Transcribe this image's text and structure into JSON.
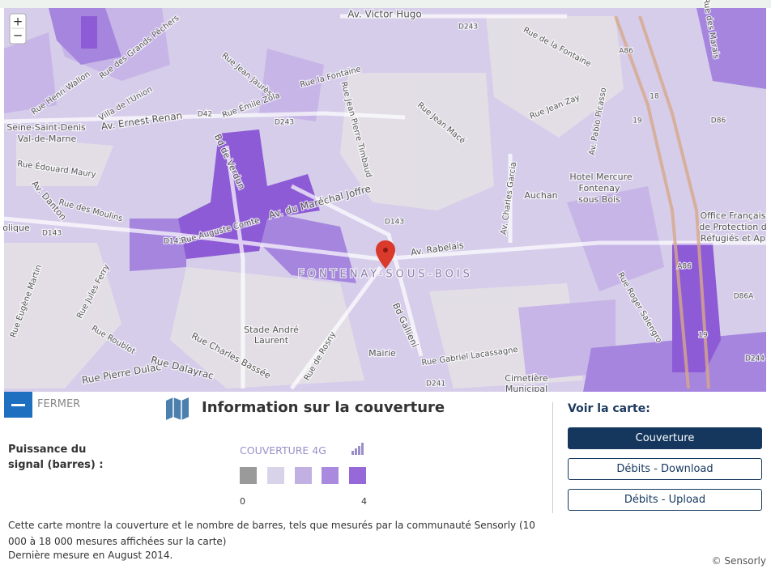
{
  "map": {
    "zoom_in": "+",
    "zoom_out": "−",
    "labels": [
      "Av. Victor Hugo",
      "D243",
      "Rue de la Fontaine",
      "A86",
      "Rue des Marais",
      "Rue Henri Wallon",
      "Villa de l'Union",
      "Rue des Grands Pêchers",
      "Rue Émile Zola",
      "Rue la Fontaine",
      "Rue Jean Jaurès",
      "D42",
      "D243",
      "Av. Ernest Renan",
      "Seine-Saint-Denis",
      "Val-de-Marne",
      "Rue Édouard Maury",
      "Bd de Verdun",
      "Rue Jean Pierre Timbaud",
      "Rue Jean Macé",
      "Rue Jean Zay",
      "Av. Pablo Picasso",
      "18",
      "19",
      "D86",
      "Hotel Mercure",
      "Fontenay",
      "sous Bois",
      "Auchan",
      "Av. Charles Garcia",
      "Office Français",
      "de Protection d",
      "Réfugiés et Ap",
      "Av. du Maréchal Joffre",
      "D143",
      "D143",
      "D143",
      "Rue Auguste Comte",
      "Av. Rabelais",
      "FONTENAY-SOUS-BOIS",
      "Av. Danton",
      "Rue des Moulins",
      "olique",
      "Rue Roger Salengro",
      "Stade André",
      "Laurent",
      "Bd Gallieni",
      "Rue de Rosny",
      "Mairie",
      "Rue Gabriel Lacassagne",
      "Cimetière",
      "Municipal",
      "Rue Charles Bassée",
      "Rue Pierre Dulac",
      "Rue Dalayrac",
      "Rue Roublot",
      "Rue Jules Ferry",
      "Rue Eugène Martin",
      "D241",
      "D244",
      "D86A",
      "19",
      "A86"
    ]
  },
  "panel": {
    "close": "FERMER",
    "title": "Information sur la couverture",
    "strength_label": "Puissance du signal (barres) :",
    "legend": {
      "title": "COUVERTURE 4G",
      "colors": [
        "#9a9a9a",
        "#d9d3ea",
        "#c2b0e3",
        "#a98ade",
        "#9768d8"
      ],
      "min_label": "0",
      "max_label": "4"
    },
    "description": "Cette carte montre la couverture et le nombre de barres, tels que mesurés par la communauté Sensorly (10 000 à 18 000 mesures affichées sur la carte)",
    "last_measure": "Dernière mesure en August 2014.",
    "view_map": "Voir la carte:",
    "buttons": [
      "Couverture",
      "Débits - Download",
      "Débits - Upload"
    ],
    "copyright": "© Sensorly"
  }
}
